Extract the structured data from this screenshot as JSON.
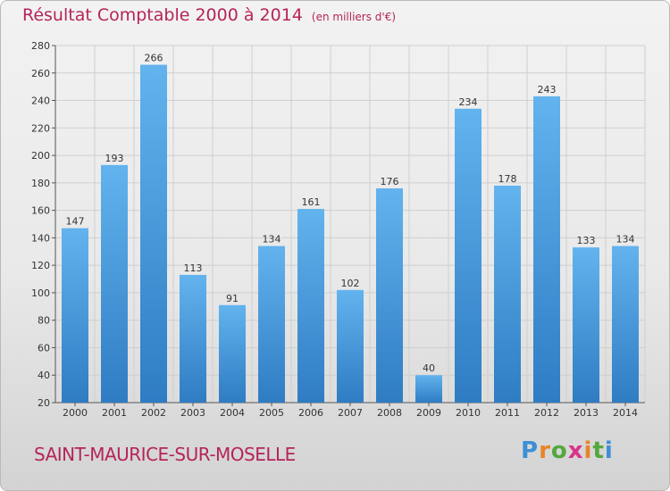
{
  "title": "Résultat Comptable 2000 à 2014",
  "subtitle": "(en milliers d'€)",
  "place": "SAINT-MAURICE-SUR-MOSELLE",
  "logo": {
    "text": "Proxiti"
  },
  "colors": {
    "title": "#b5245a",
    "bar_light": "#62b3ee",
    "bar_dark": "#2f7cc3",
    "grid": "#cfcfcf"
  },
  "chart_data": {
    "type": "bar",
    "title": "Résultat Comptable 2000 à 2014",
    "subtitle": "(en milliers d'€)",
    "categories": [
      "2000",
      "2001",
      "2002",
      "2003",
      "2004",
      "2005",
      "2006",
      "2007",
      "2008",
      "2009",
      "2010",
      "2011",
      "2012",
      "2013",
      "2014"
    ],
    "values": [
      147,
      193,
      266,
      113,
      91,
      134,
      161,
      102,
      176,
      40,
      234,
      178,
      243,
      133,
      134
    ],
    "ylim": [
      20,
      280
    ],
    "yticks": [
      20,
      40,
      60,
      80,
      100,
      120,
      140,
      160,
      180,
      200,
      220,
      240,
      260,
      280
    ],
    "grid": true,
    "data_labels": true
  }
}
